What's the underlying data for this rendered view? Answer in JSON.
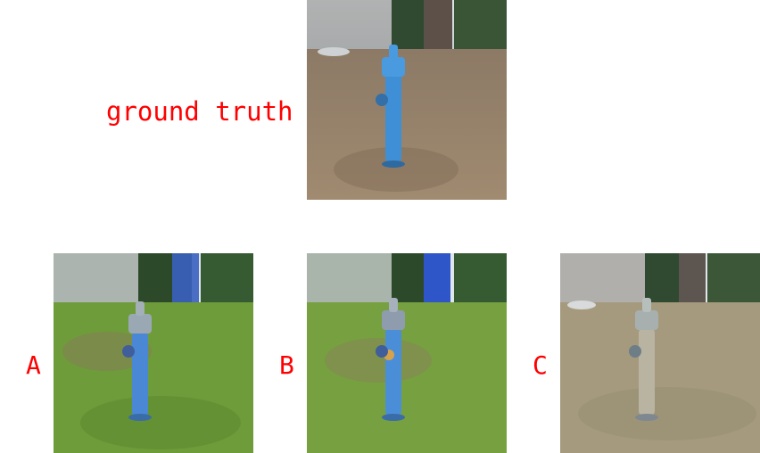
{
  "ground_truth": {
    "label": "ground truth"
  },
  "options": [
    {
      "label": "A",
      "tint": "green-grass-blue-tree"
    },
    {
      "label": "B",
      "tint": "green-grass-blue-trunk"
    },
    {
      "label": "C",
      "tint": "faded-gray-hydrant"
    }
  ],
  "colors": {
    "label": "#ff0000",
    "hydrant_blue": "#3f8fd6",
    "ground_brown": "#9a8266",
    "grass_green": "#6f9c3a"
  }
}
